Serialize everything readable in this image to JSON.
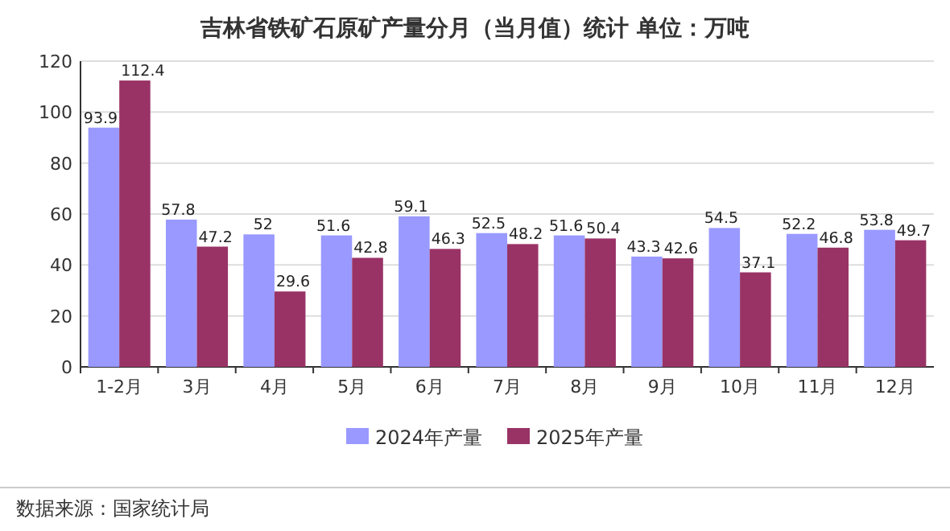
{
  "chart_data": {
    "type": "bar",
    "title": "吉林省铁矿石原矿产量分月（当月值）统计  单位：万吨",
    "categories": [
      "1-2月",
      "3月",
      "4月",
      "5月",
      "6月",
      "7月",
      "8月",
      "9月",
      "10月",
      "11月",
      "12月"
    ],
    "series": [
      {
        "name": "2024年产量",
        "color": "#9999ff",
        "values": [
          93.9,
          57.8,
          52,
          51.6,
          59.1,
          52.5,
          51.6,
          43.3,
          54.5,
          52.2,
          53.8
        ]
      },
      {
        "name": "2025年产量",
        "color": "#993366",
        "values": [
          112.4,
          47.2,
          29.6,
          42.8,
          46.3,
          48.2,
          50.4,
          42.6,
          37.1,
          46.8,
          49.7
        ]
      }
    ],
    "ylim": [
      0,
      120
    ],
    "yticks": [
      0,
      20,
      40,
      60,
      80,
      100,
      120
    ],
    "grid": "y",
    "legend": "bottom",
    "data_labels": true,
    "annotations": [
      "数据来源：国家统计局"
    ]
  }
}
